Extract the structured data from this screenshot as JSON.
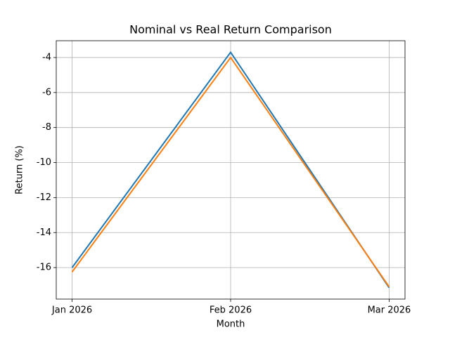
{
  "chart_data": {
    "type": "line",
    "title": "Nominal vs Real Return Comparison",
    "x_label": "Month",
    "y_label": "Return (%)",
    "categories": [
      "Jan 2026",
      "Feb 2026",
      "Mar 2026"
    ],
    "series": [
      {
        "color": "#1f77b4",
        "values": [
          -16.0,
          -3.7,
          -17.15
        ]
      },
      {
        "color": "#ff7f0e",
        "values": [
          -16.25,
          -4.0,
          -17.1
        ]
      }
    ],
    "ylim": [
      -17.8,
      -3.04
    ],
    "yticks": [
      -16,
      -14,
      -12,
      -10,
      -8,
      -6,
      -4
    ],
    "grid": true
  }
}
